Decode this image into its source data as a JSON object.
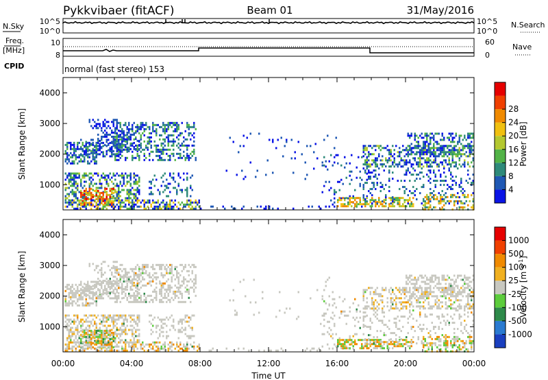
{
  "header": {
    "radar": "Pykkvibaer (fitACF)",
    "beam": "Beam 01",
    "date": "31/May/2016"
  },
  "strips": {
    "nsky_label": "N.Sky",
    "nsky_ticks": [
      "10^5",
      "10^0"
    ],
    "nsearch_label": "N.Search",
    "nsearch_ticks": [
      "10^5",
      "10^0"
    ],
    "freq_label_1": "Freq.",
    "freq_label_2": "[MHz]",
    "freq_ticks": [
      "10",
      "8"
    ],
    "nave_label": "Nave",
    "nave_ticks": [
      "60",
      "0"
    ],
    "cpid_label": "CPID",
    "cpid_text": "normal (fast stereo) 153"
  },
  "chart_data": [
    {
      "type": "heatmap",
      "name": "power",
      "ylabel": "Slant Range [km]",
      "xlabel": "",
      "ylim": [
        180,
        4500
      ],
      "yticks": [
        "1000",
        "2000",
        "3000",
        "4000"
      ],
      "colorbar": {
        "label": "Power [dB]",
        "ticks": [
          "4",
          "8",
          "12",
          "16",
          "20",
          "24",
          "28"
        ],
        "colors": [
          "#0a14e6",
          "#1f58b4",
          "#2e8a7a",
          "#52b347",
          "#b4c830",
          "#f0c010",
          "#f08a00",
          "#f04000",
          "#e60000"
        ]
      }
    },
    {
      "type": "heatmap",
      "name": "velocity",
      "ylabel": "Slant Range [km]",
      "xlabel": "Time UT",
      "ylim": [
        180,
        4500
      ],
      "yticks": [
        "1000",
        "2000",
        "3000",
        "4000"
      ],
      "xticks": [
        "00:00",
        "04:00",
        "08:00",
        "12:00",
        "16:00",
        "20:00",
        "00:00"
      ],
      "colorbar": {
        "label": "Velocity [m s",
        "label_sup": "-1",
        "label_end": "]",
        "ticks": [
          "1000",
          "500",
          "100",
          "25",
          "-25",
          "-100",
          "-500",
          "-1000"
        ],
        "colors": [
          "#1a3fbf",
          "#2a7ad0",
          "#2e8a4a",
          "#5ccc3c",
          "#c8c8c0",
          "#f0b020",
          "#f08a00",
          "#f04000",
          "#e60000"
        ]
      }
    }
  ]
}
